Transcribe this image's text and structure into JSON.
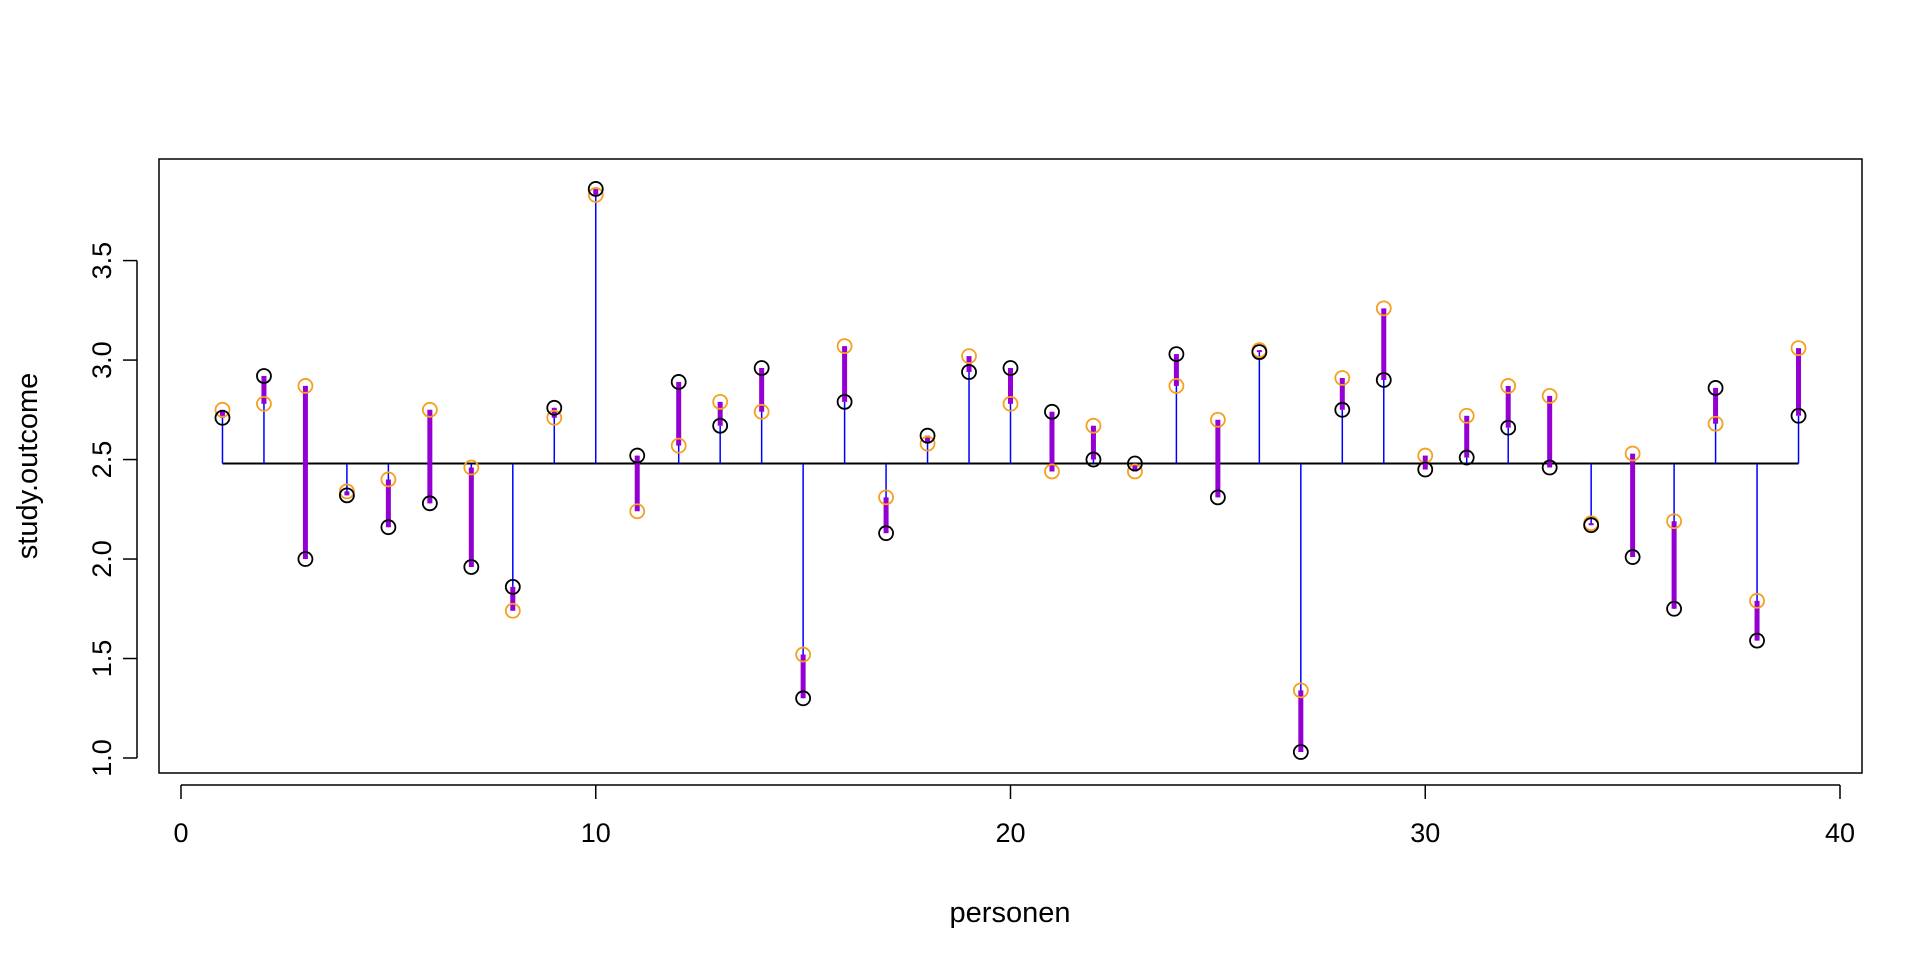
{
  "chart_data": {
    "type": "scatter",
    "title": "",
    "xlabel": "personen",
    "ylabel": "study.outcome",
    "xlim": [
      0,
      40
    ],
    "ylim": [
      1.0,
      3.9
    ],
    "x_ticks": [
      "0",
      "10",
      "20",
      "30",
      "40"
    ],
    "y_ticks": [
      "1.0",
      "1.5",
      "2.0",
      "2.5",
      "3.0",
      "3.5"
    ],
    "x_tick_values": [
      0,
      10,
      20,
      30,
      40
    ],
    "y_tick_values": [
      1.0,
      1.5,
      2.0,
      2.5,
      3.0,
      3.5
    ],
    "mean_line": 2.48,
    "grid": false,
    "x": [
      1,
      2,
      3,
      4,
      5,
      6,
      7,
      8,
      9,
      10,
      11,
      12,
      13,
      14,
      15,
      16,
      17,
      18,
      19,
      20,
      21,
      22,
      23,
      24,
      25,
      26,
      27,
      28,
      29,
      30,
      31,
      32,
      33,
      34,
      35,
      36,
      37,
      38,
      39
    ],
    "series": [
      {
        "color": "#000000",
        "marker": "open-circle",
        "values": [
          2.71,
          2.92,
          2.0,
          2.32,
          2.16,
          2.28,
          1.96,
          1.86,
          2.76,
          3.86,
          2.52,
          2.89,
          2.67,
          2.96,
          1.3,
          2.79,
          2.13,
          2.62,
          2.94,
          2.96,
          2.74,
          2.5,
          2.48,
          3.03,
          2.31,
          3.04,
          1.03,
          2.75,
          2.9,
          2.45,
          2.51,
          2.66,
          2.46,
          2.17,
          2.01,
          1.75,
          2.86,
          1.59,
          2.72
        ]
      },
      {
        "color": "#f5a020",
        "marker": "open-circle",
        "values": [
          2.75,
          2.78,
          2.87,
          2.34,
          2.4,
          2.75,
          2.46,
          1.74,
          2.71,
          3.83,
          2.24,
          2.57,
          2.79,
          2.74,
          1.52,
          3.07,
          2.31,
          2.58,
          3.02,
          2.78,
          2.44,
          2.67,
          2.44,
          2.87,
          2.7,
          3.05,
          1.34,
          2.91,
          3.26,
          2.52,
          2.72,
          2.87,
          2.82,
          2.18,
          2.53,
          2.19,
          2.68,
          1.79,
          3.06
        ]
      }
    ],
    "residual_line_color": "#0000ff",
    "diff_line_color": "#9400d3"
  }
}
